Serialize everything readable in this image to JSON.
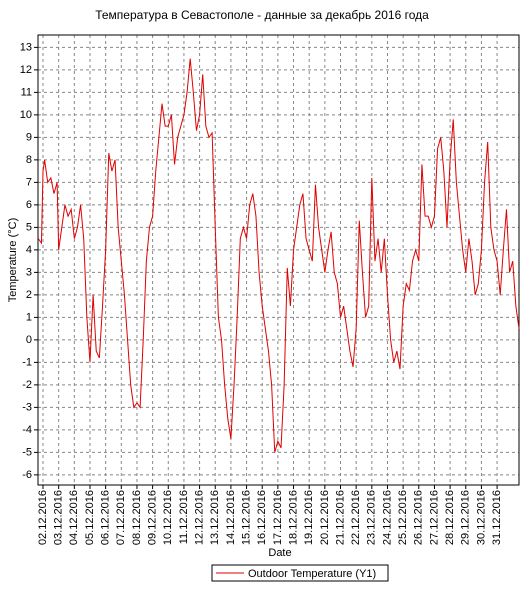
{
  "chart_data": {
    "type": "line",
    "title": "Температура в Севастополе - данные за декабрь 2016 года",
    "x_label": "Date",
    "y_label": "Temperature (°C)",
    "x": [
      1.7,
      1.9,
      2.0,
      2.1,
      2.3,
      2.5,
      2.7,
      2.9,
      3.0,
      3.2,
      3.4,
      3.6,
      3.8,
      4.0,
      4.2,
      4.4,
      4.6,
      4.8,
      5.0,
      5.2,
      5.4,
      5.6,
      5.8,
      6.0,
      6.2,
      6.4,
      6.6,
      6.8,
      7.0,
      7.2,
      7.4,
      7.6,
      7.8,
      8.0,
      8.2,
      8.4,
      8.6,
      8.8,
      9.0,
      9.2,
      9.4,
      9.6,
      9.8,
      10.0,
      10.2,
      10.4,
      10.6,
      10.8,
      11.0,
      11.2,
      11.4,
      11.6,
      11.8,
      12.0,
      12.2,
      12.4,
      12.6,
      12.8,
      13.0,
      13.2,
      13.4,
      13.6,
      13.8,
      14.0,
      14.2,
      14.4,
      14.6,
      14.8,
      15.0,
      15.2,
      15.4,
      15.6,
      15.8,
      16.0,
      16.2,
      16.4,
      16.6,
      16.8,
      17.0,
      17.2,
      17.4,
      17.6,
      17.8,
      18.0,
      18.2,
      18.4,
      18.6,
      18.8,
      19.0,
      19.2,
      19.4,
      19.6,
      19.8,
      20.0,
      20.2,
      20.4,
      20.6,
      20.8,
      21.0,
      21.2,
      21.4,
      21.6,
      21.8,
      22.0,
      22.2,
      22.4,
      22.6,
      22.8,
      23.0,
      23.2,
      23.4,
      23.6,
      23.8,
      24.0,
      24.2,
      24.4,
      24.6,
      24.8,
      25.0,
      25.2,
      25.4,
      25.6,
      25.8,
      26.0,
      26.2,
      26.4,
      26.6,
      26.8,
      27.0,
      27.2,
      27.4,
      27.6,
      27.8,
      28.0,
      28.2,
      28.4,
      28.6,
      28.8,
      29.0,
      29.2,
      29.4,
      29.6,
      29.8,
      30.0,
      30.2,
      30.4,
      30.6,
      30.8,
      31.0,
      31.2,
      31.4,
      31.6,
      31.8,
      32.0,
      32.2,
      32.4
    ],
    "series": [
      {
        "name": "Outdoor Temperature (Y1)",
        "color": "#e00000",
        "values": [
          4.5,
          4.3,
          7.5,
          8.0,
          7.0,
          7.2,
          6.5,
          7.0,
          4.0,
          5.0,
          6.0,
          5.5,
          5.8,
          4.5,
          5.0,
          6.0,
          4.5,
          1.0,
          -1.0,
          2.0,
          -0.5,
          -0.8,
          1.5,
          4.0,
          8.3,
          7.5,
          8.0,
          5.0,
          3.5,
          2.0,
          0,
          -2.0,
          -3.0,
          -2.8,
          -3.0,
          0,
          3.5,
          5.0,
          5.5,
          7.5,
          9.0,
          10.5,
          9.5,
          9.5,
          10.0,
          7.8,
          9.0,
          9.5,
          10.0,
          11.0,
          12.5,
          11.0,
          9.3,
          10.0,
          11.8,
          9.5,
          9.0,
          9.2,
          5.0,
          1.0,
          0,
          -2.0,
          -3.5,
          -4.4,
          -2.0,
          1.0,
          4.5,
          5.0,
          4.5,
          6.0,
          6.5,
          5.5,
          3.0,
          1.5,
          0.5,
          -0.5,
          -2.0,
          -5.0,
          -4.5,
          -4.8,
          -2.0,
          3.2,
          1.5,
          4.0,
          5.0,
          6.0,
          6.5,
          4.5,
          4.0,
          3.5,
          6.9,
          5.0,
          4.0,
          3.0,
          4.0,
          4.8,
          3.0,
          2.5,
          1.0,
          1.5,
          0.5,
          -0.5,
          -1.2,
          0.5,
          5.3,
          3.0,
          1.0,
          1.5,
          7.2,
          3.5,
          4.5,
          3.0,
          4.5,
          2.0,
          0,
          -1.0,
          -0.5,
          -1.3,
          1.5,
          2.5,
          2.2,
          3.5,
          4.0,
          3.5,
          7.8,
          5.5,
          5.5,
          5.0,
          5.5,
          8.5,
          9.0,
          7.5,
          5.0,
          8.0,
          9.8,
          7.0,
          5.5,
          4.0,
          3.0,
          4.5,
          3.5,
          2.0,
          2.5,
          4.0,
          7.0,
          8.8,
          5.0,
          4.0,
          3.5,
          2.0,
          4.0,
          5.8,
          3.0,
          3.5,
          1.5,
          0.5
        ]
      }
    ],
    "xlim": [
      1.68,
      32.4
    ],
    "xticks": [
      {
        "value": 2,
        "label": "02.12.2016"
      },
      {
        "value": 3,
        "label": "03.12.2016"
      },
      {
        "value": 4,
        "label": "04.12.2016"
      },
      {
        "value": 5,
        "label": "05.12.2016"
      },
      {
        "value": 6,
        "label": "06.12.2016"
      },
      {
        "value": 7,
        "label": "07.12.2016"
      },
      {
        "value": 8,
        "label": "08.12.2016"
      },
      {
        "value": 9,
        "label": "09.12.2016"
      },
      {
        "value": 10,
        "label": "10.12.2016"
      },
      {
        "value": 11,
        "label": "11.12.2016"
      },
      {
        "value": 12,
        "label": "12.12.2016"
      },
      {
        "value": 13,
        "label": "13.12.2016"
      },
      {
        "value": 14,
        "label": "14.12.2016"
      },
      {
        "value": 15,
        "label": "15.12.2016"
      },
      {
        "value": 16,
        "label": "16.12.2016"
      },
      {
        "value": 17,
        "label": "17.12.2016"
      },
      {
        "value": 18,
        "label": "18.12.2016"
      },
      {
        "value": 19,
        "label": "19.12.2016"
      },
      {
        "value": 20,
        "label": "20.12.2016"
      },
      {
        "value": 21,
        "label": "21.12.2016"
      },
      {
        "value": 22,
        "label": "22.12.2016"
      },
      {
        "value": 23,
        "label": "23.12.2016"
      },
      {
        "value": 24,
        "label": "24.12.2016"
      },
      {
        "value": 25,
        "label": "25.12.2016"
      },
      {
        "value": 26,
        "label": "26.12.2016"
      },
      {
        "value": 27,
        "label": "27.12.2016"
      },
      {
        "value": 28,
        "label": "28.12.2016"
      },
      {
        "value": 29,
        "label": "29.12.2016"
      },
      {
        "value": 30,
        "label": "30.12.2016"
      },
      {
        "value": 31,
        "label": "31.12.2016"
      }
    ],
    "ylim": [
      -6.45,
      13.55
    ],
    "yticks": [
      -6,
      -5,
      -4,
      -3,
      -2,
      -1,
      0,
      1,
      2,
      3,
      4,
      5,
      6,
      7,
      8,
      9,
      10,
      11,
      12,
      13
    ],
    "grid": true
  }
}
